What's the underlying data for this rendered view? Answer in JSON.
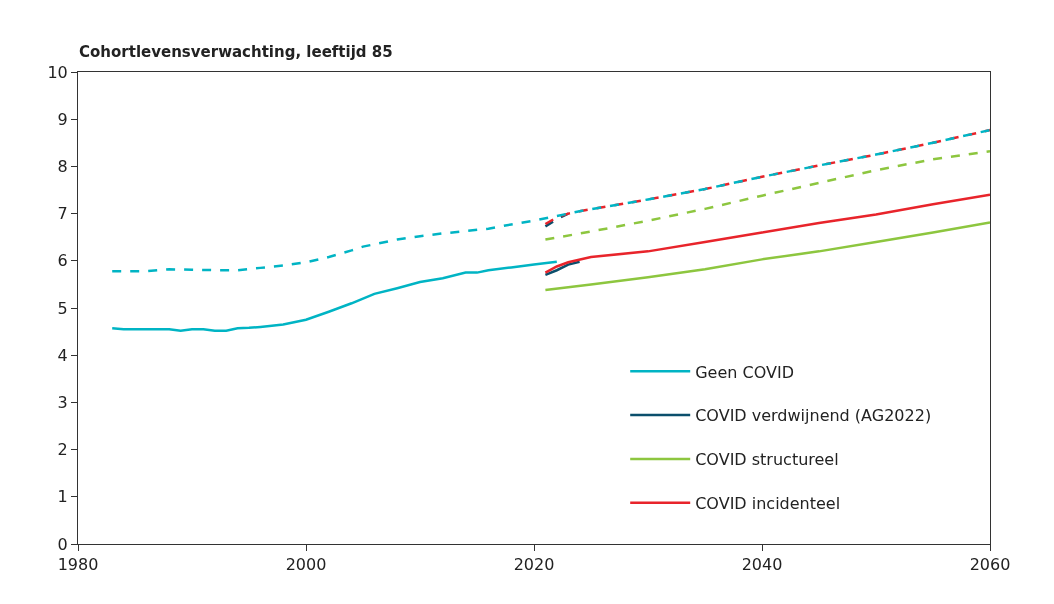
{
  "chart_data": {
    "type": "line",
    "title": "Cohortlevensverwachting, leeftijd 85",
    "xlim": [
      1980,
      2060
    ],
    "xticks": [
      1980,
      2000,
      2020,
      2040,
      2060
    ],
    "ylim": [
      0,
      10
    ],
    "yticks": [
      0,
      1,
      2,
      3,
      4,
      5,
      6,
      7,
      8,
      9,
      10
    ],
    "legend": "bottom right",
    "marker": "none",
    "series": [
      {
        "name": "Geen COVID",
        "color": "#00b4c4",
        "line_style": "solid",
        "x": [
          1983,
          1984,
          1986,
          1988,
          1989,
          1990,
          1991,
          1992,
          1993,
          1994,
          1995,
          1996,
          1998,
          2000,
          2002,
          2004,
          2006,
          2008,
          2010,
          2012,
          2014,
          2015,
          2016,
          2018,
          2020,
          2022
        ],
        "values": [
          4.57,
          4.55,
          4.55,
          4.55,
          4.52,
          4.55,
          4.55,
          4.52,
          4.52,
          4.57,
          4.58,
          4.6,
          4.65,
          4.75,
          4.92,
          5.1,
          5.3,
          5.42,
          5.55,
          5.63,
          5.75,
          5.75,
          5.8,
          5.86,
          5.92,
          5.98
        ]
      },
      {
        "name": "COVID verdwijnend (AG2022)",
        "color": "#0b4f6c",
        "line_style": "solid",
        "x": [
          2021,
          2022,
          2023,
          2024
        ],
        "values": [
          5.7,
          5.8,
          5.92,
          5.98
        ]
      },
      {
        "color": "#0b4f6c",
        "line_style": "dashed",
        "x": [
          2021,
          2022,
          2023
        ],
        "values": [
          6.73,
          6.88,
          7.0
        ]
      },
      {
        "name": "COVID structureel",
        "color": "#8dc63f",
        "line_style": "solid",
        "x": [
          2021,
          2025,
          2030,
          2035,
          2040,
          2045,
          2050,
          2055,
          2060
        ],
        "values": [
          5.38,
          5.5,
          5.65,
          5.82,
          6.03,
          6.2,
          6.4,
          6.6,
          6.81
        ]
      },
      {
        "color": "#8dc63f",
        "line_style": "dashed",
        "x": [
          2021,
          2025,
          2030,
          2035,
          2040,
          2045,
          2050,
          2055,
          2060
        ],
        "values": [
          6.45,
          6.62,
          6.85,
          7.1,
          7.38,
          7.65,
          7.92,
          8.15,
          8.32
        ]
      },
      {
        "name": "COVID incidenteel",
        "color": "#e8242b",
        "line_style": "solid",
        "x": [
          2021,
          2022,
          2023,
          2025,
          2030,
          2035,
          2040,
          2045,
          2050,
          2055,
          2060
        ],
        "values": [
          5.75,
          5.88,
          5.97,
          6.08,
          6.2,
          6.4,
          6.6,
          6.8,
          6.98,
          7.2,
          7.4
        ]
      },
      {
        "color": "#e8242b",
        "line_style": "dashed",
        "x": [
          2021,
          2022,
          2023,
          2024,
          2030,
          2035,
          2040,
          2045,
          2050,
          2055,
          2060
        ],
        "values": [
          6.78,
          6.92,
          7.0,
          7.05,
          7.3,
          7.52,
          7.78,
          8.02,
          8.25,
          8.5,
          8.77
        ]
      },
      {
        "color": "#00b4c4",
        "line_style": "dashed",
        "x": [
          1983,
          1985,
          1986,
          1988,
          1990,
          1993,
          1994,
          1996,
          1998,
          2000,
          2002,
          2004,
          2005,
          2008,
          2010,
          2012,
          2014,
          2016,
          2018,
          2020,
          2022,
          2024,
          2030,
          2035,
          2040,
          2045,
          2050,
          2055,
          2060
        ],
        "values": [
          5.78,
          5.78,
          5.78,
          5.82,
          5.81,
          5.8,
          5.8,
          5.85,
          5.9,
          5.97,
          6.08,
          6.22,
          6.3,
          6.45,
          6.52,
          6.58,
          6.63,
          6.68,
          6.77,
          6.85,
          6.95,
          7.05,
          7.3,
          7.52,
          7.78,
          8.02,
          8.25,
          8.5,
          8.77
        ]
      }
    ]
  }
}
